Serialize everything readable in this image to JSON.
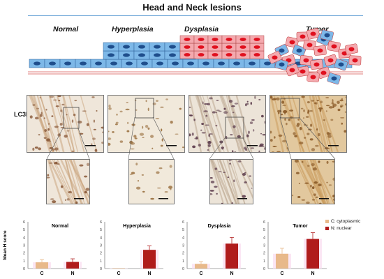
{
  "figure": {
    "title": "Head and Neck lesions",
    "stages": [
      "Normal",
      "Hyperplasia",
      "Dysplasia",
      "Tumor"
    ],
    "marker_label": "LC3B",
    "legend": [
      {
        "label": "C: cytoplasmic",
        "color": "#e8b98a"
      },
      {
        "label": "N: nuclear",
        "color": "#b01c1c"
      }
    ],
    "colors": {
      "normal_cell": "#7db8e8",
      "normal_nucleus": "#1f4e8c",
      "tumor_cell": "#f4a9ae",
      "tumor_nucleus": "#e0101e",
      "basement_line": "#d9534f",
      "highlight": "#fbe3f3"
    }
  },
  "chart_data": [
    {
      "type": "bar",
      "title": "Normal",
      "categories": [
        "C",
        "N"
      ],
      "values": [
        0.8,
        0.85
      ],
      "errors": [
        0.35,
        0.4
      ],
      "ylabel": "Mean H score",
      "ylim": [
        0,
        6
      ],
      "yticks": [
        "0",
        "1",
        "2",
        "3",
        "4",
        "5",
        "6"
      ]
    },
    {
      "type": "bar",
      "title": "Hyperplasia",
      "categories": [
        "C",
        "N"
      ],
      "values": [
        0.05,
        2.4
      ],
      "errors": [
        0.0,
        0.5
      ],
      "ylabel": "",
      "ylim": [
        0,
        6
      ],
      "yticks": [
        "0",
        "1",
        "2",
        "3",
        "4",
        "5",
        "6"
      ]
    },
    {
      "type": "bar",
      "title": "Dysplasia",
      "categories": [
        "C",
        "N"
      ],
      "values": [
        0.6,
        3.2
      ],
      "errors": [
        0.3,
        0.8
      ],
      "ylabel": "",
      "ylim": [
        0,
        6
      ],
      "yticks": [
        "0",
        "1",
        "2",
        "3",
        "4",
        "5",
        "6"
      ]
    },
    {
      "type": "bar",
      "title": "Tumor",
      "categories": [
        "C",
        "N"
      ],
      "values": [
        1.9,
        3.8
      ],
      "errors": [
        0.7,
        0.8
      ],
      "ylabel": "",
      "ylim": [
        0,
        6
      ],
      "yticks": [
        "0",
        "1",
        "2",
        "3",
        "4",
        "5",
        "6"
      ]
    }
  ]
}
